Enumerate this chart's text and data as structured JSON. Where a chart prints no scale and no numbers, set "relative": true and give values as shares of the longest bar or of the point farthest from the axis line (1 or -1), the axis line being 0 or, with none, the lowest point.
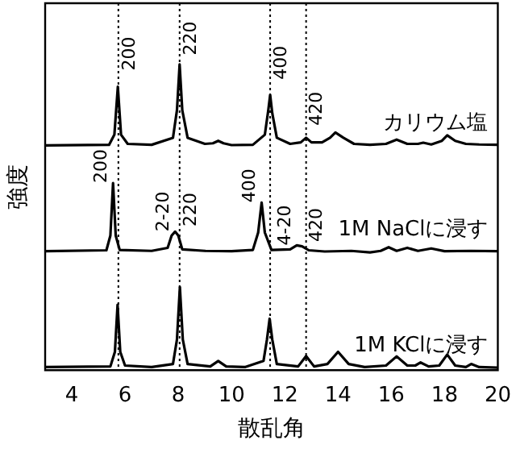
{
  "chart_data": {
    "type": "line",
    "relative": true,
    "xlabel": "散乱角",
    "ylabel": "強度",
    "xlim": [
      3,
      20
    ],
    "xticks": [
      4,
      6,
      8,
      10,
      12,
      14,
      16,
      18,
      20
    ],
    "tick_labels": "x",
    "grid": false,
    "legend": false,
    "marker": "none",
    "line_style": "solid",
    "series": [
      {
        "name": "カリウム塩",
        "color": "#000000",
        "x": [
          3,
          5.4,
          5.6,
          5.73,
          5.85,
          6.1,
          7,
          7.8,
          7.95,
          8.05,
          8.15,
          8.35,
          9,
          9.3,
          9.5,
          9.7,
          10,
          10.8,
          11.25,
          11.38,
          11.45,
          11.53,
          11.7,
          12.2,
          12.6,
          12.8,
          13,
          13.4,
          13.7,
          13.9,
          14.2,
          14.6,
          15.2,
          15.8,
          16.2,
          16.6,
          17.0,
          17.2,
          17.5,
          17.9,
          18.1,
          18.4,
          18.8,
          19.3,
          20
        ],
        "values": [
          0.735,
          0.737,
          0.77,
          0.927,
          0.77,
          0.74,
          0.737,
          0.76,
          0.85,
          1.0,
          0.85,
          0.76,
          0.74,
          0.742,
          0.75,
          0.742,
          0.736,
          0.737,
          0.77,
          0.85,
          0.9,
          0.84,
          0.76,
          0.74,
          0.745,
          0.76,
          0.745,
          0.745,
          0.76,
          0.777,
          0.76,
          0.74,
          0.737,
          0.74,
          0.754,
          0.74,
          0.74,
          0.744,
          0.738,
          0.75,
          0.768,
          0.75,
          0.74,
          0.738,
          0.737
        ]
      },
      {
        "name": "1M NaClに浸す",
        "color": "#000000",
        "x": [
          3,
          5.3,
          5.45,
          5.55,
          5.65,
          5.8,
          7.0,
          7.6,
          7.75,
          7.88,
          8.0,
          8.15,
          9,
          10,
          10.8,
          11.0,
          11.13,
          11.25,
          11.5,
          12.2,
          12.45,
          12.65,
          12.9,
          13.5,
          14.5,
          15.2,
          15.6,
          15.9,
          16.2,
          16.6,
          17.0,
          17.5,
          18,
          19,
          20
        ],
        "values": [
          0.389,
          0.392,
          0.44,
          0.612,
          0.44,
          0.393,
          0.39,
          0.4,
          0.44,
          0.453,
          0.44,
          0.395,
          0.39,
          0.389,
          0.393,
          0.45,
          0.548,
          0.45,
          0.393,
          0.395,
          0.408,
          0.405,
          0.392,
          0.388,
          0.39,
          0.385,
          0.39,
          0.402,
          0.39,
          0.4,
          0.39,
          0.398,
          0.389,
          0.39,
          0.389
        ]
      },
      {
        "name": "1M KClに浸す",
        "color": "#000000",
        "x": [
          3,
          5.45,
          5.62,
          5.72,
          5.82,
          6.0,
          7.0,
          7.8,
          7.95,
          8.06,
          8.17,
          8.35,
          9.2,
          9.5,
          9.8,
          10.5,
          11.2,
          11.33,
          11.43,
          11.53,
          11.7,
          12.5,
          12.8,
          13.1,
          13.6,
          14.0,
          14.4,
          15,
          15.8,
          16.2,
          16.6,
          16.9,
          17.1,
          17.4,
          17.8,
          18.1,
          18.4,
          18.8,
          19,
          19.3,
          20
        ],
        "values": [
          0.01,
          0.012,
          0.06,
          0.214,
          0.06,
          0.015,
          0.01,
          0.02,
          0.1,
          0.272,
          0.1,
          0.02,
          0.012,
          0.03,
          0.012,
          0.01,
          0.03,
          0.1,
          0.168,
          0.1,
          0.02,
          0.012,
          0.046,
          0.012,
          0.02,
          0.06,
          0.02,
          0.01,
          0.015,
          0.045,
          0.015,
          0.015,
          0.025,
          0.012,
          0.015,
          0.051,
          0.015,
          0.01,
          0.02,
          0.01,
          0.008
        ]
      }
    ],
    "ref_lines": [
      {
        "axis": "x",
        "value": 5.75,
        "color": "#000000",
        "line_style": "dotted"
      },
      {
        "axis": "x",
        "value": 8.05,
        "color": "#000000",
        "line_style": "dotted"
      },
      {
        "axis": "x",
        "value": 11.45,
        "color": "#000000",
        "line_style": "dotted"
      },
      {
        "axis": "x",
        "value": 12.8,
        "color": "#000000",
        "line_style": "dotted"
      }
    ],
    "annotations": [
      {
        "text": "200",
        "x": 5.75,
        "y": 0.98
      },
      {
        "text": "220",
        "x": 8.05,
        "y": 1.03
      },
      {
        "text": "400",
        "x": 11.45,
        "y": 0.95
      },
      {
        "text": "420",
        "x": 12.8,
        "y": 0.8
      },
      {
        "text": "200",
        "x": 5.55,
        "y": 0.612
      },
      {
        "text": "2-20",
        "x": 7.88,
        "y": 0.453
      },
      {
        "text": "220",
        "x": 8.05,
        "y": 0.47
      },
      {
        "text": "400",
        "x": 11.13,
        "y": 0.548
      },
      {
        "text": "4-20",
        "x": 12.45,
        "y": 0.408
      },
      {
        "text": "420",
        "x": 12.8,
        "y": 0.42
      }
    ]
  }
}
